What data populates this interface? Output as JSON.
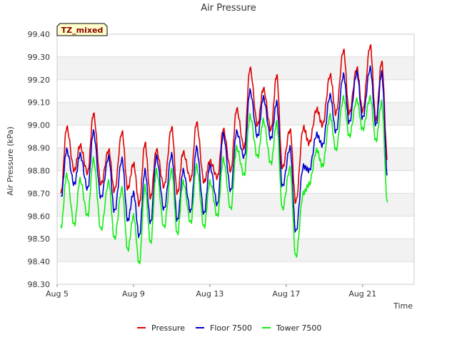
{
  "chart_data": {
    "type": "line",
    "title": "Air Pressure",
    "xlabel": "Time",
    "ylabel": "Air Pressure (kPa)",
    "badge": "TZ_mixed",
    "ylim": [
      98.3,
      99.4
    ],
    "yticks": [
      "98.30",
      "98.40",
      "98.50",
      "98.60",
      "98.70",
      "98.80",
      "98.90",
      "99.00",
      "99.10",
      "99.20",
      "99.30",
      "99.40"
    ],
    "xlim": [
      5.0,
      23.7
    ],
    "xticks": [
      {
        "label": "Aug 5",
        "day": 5
      },
      {
        "label": "Aug 9",
        "day": 9
      },
      {
        "label": "Aug 13",
        "day": 13
      },
      {
        "label": "Aug 17",
        "day": 17
      },
      {
        "label": "Aug 21",
        "day": 21
      }
    ],
    "grid": true,
    "legend_position": "bottom",
    "series": [
      {
        "name": "Pressure",
        "color": "#dd0000",
        "day": [
          5.2,
          5.5,
          5.9,
          6.2,
          6.6,
          6.9,
          7.3,
          7.7,
          8.0,
          8.4,
          8.7,
          9.0,
          9.3,
          9.6,
          9.9,
          10.2,
          10.6,
          11.0,
          11.3,
          11.6,
          12.0,
          12.3,
          12.7,
          13.0,
          13.4,
          13.7,
          14.1,
          14.4,
          14.8,
          15.1,
          15.5,
          15.8,
          16.2,
          16.5,
          16.8,
          17.2,
          17.5,
          17.9,
          18.2,
          18.6,
          18.9,
          19.3,
          19.6,
          20.0,
          20.3,
          20.7,
          21.0,
          21.4,
          21.7,
          22.0,
          22.3
        ],
        "values": [
          98.7,
          98.99,
          98.8,
          98.91,
          98.79,
          99.05,
          98.74,
          98.89,
          98.71,
          98.97,
          98.72,
          98.83,
          98.65,
          98.92,
          98.68,
          98.89,
          98.73,
          98.99,
          98.7,
          98.88,
          98.76,
          99.01,
          98.75,
          98.84,
          98.77,
          98.98,
          98.8,
          99.07,
          98.9,
          99.25,
          99.0,
          99.16,
          98.98,
          99.22,
          98.81,
          98.98,
          98.66,
          98.99,
          98.92,
          99.07,
          99.0,
          99.22,
          99.05,
          99.33,
          99.05,
          99.25,
          99.06,
          99.35,
          99.02,
          99.28,
          98.85
        ]
      },
      {
        "name": "Floor 7500",
        "color": "#0000cc",
        "day": [
          5.2,
          5.5,
          5.9,
          6.2,
          6.6,
          6.9,
          7.3,
          7.7,
          8.0,
          8.4,
          8.7,
          9.0,
          9.3,
          9.6,
          9.9,
          10.2,
          10.6,
          11.0,
          11.3,
          11.6,
          12.0,
          12.3,
          12.7,
          13.0,
          13.4,
          13.7,
          14.1,
          14.4,
          14.8,
          15.1,
          15.5,
          15.8,
          16.2,
          16.5,
          16.8,
          17.2,
          17.5,
          17.9,
          18.2,
          18.6,
          18.9,
          19.3,
          19.6,
          20.0,
          20.3,
          20.7,
          21.0,
          21.4,
          21.7,
          22.0,
          22.3
        ],
        "values": [
          98.68,
          98.89,
          98.74,
          98.87,
          98.72,
          98.97,
          98.68,
          98.86,
          98.62,
          98.85,
          98.58,
          98.7,
          98.51,
          98.8,
          98.57,
          98.86,
          98.63,
          98.87,
          98.58,
          98.8,
          98.62,
          98.9,
          98.61,
          98.82,
          98.65,
          98.96,
          98.71,
          98.97,
          98.86,
          99.15,
          98.95,
          99.12,
          98.94,
          99.1,
          98.73,
          98.9,
          98.53,
          98.82,
          98.8,
          98.96,
          98.91,
          99.13,
          98.97,
          99.22,
          99.01,
          99.23,
          99.03,
          99.25,
          99.0,
          99.23,
          98.78
        ]
      },
      {
        "name": "Tower 7500",
        "color": "#11ee11",
        "day": [
          5.2,
          5.5,
          5.9,
          6.2,
          6.6,
          6.9,
          7.3,
          7.7,
          8.0,
          8.4,
          8.7,
          9.0,
          9.3,
          9.6,
          9.9,
          10.2,
          10.6,
          11.0,
          11.3,
          11.6,
          12.0,
          12.3,
          12.7,
          13.0,
          13.4,
          13.7,
          14.1,
          14.4,
          14.8,
          15.1,
          15.5,
          15.8,
          16.2,
          16.5,
          16.8,
          17.2,
          17.5,
          17.9,
          18.2,
          18.6,
          18.9,
          19.3,
          19.6,
          20.0,
          20.3,
          20.7,
          21.0,
          21.4,
          21.7,
          22.0,
          22.3
        ],
        "values": [
          98.55,
          98.78,
          98.56,
          98.76,
          98.6,
          98.85,
          98.54,
          98.75,
          98.5,
          98.72,
          98.45,
          98.6,
          98.39,
          98.73,
          98.48,
          98.8,
          98.55,
          98.8,
          98.52,
          98.75,
          98.57,
          98.82,
          98.55,
          98.75,
          98.6,
          98.85,
          98.63,
          98.9,
          98.78,
          99.04,
          98.86,
          99.02,
          98.83,
          99.01,
          98.63,
          98.81,
          98.42,
          98.7,
          98.74,
          98.89,
          98.82,
          99.04,
          98.89,
          99.12,
          98.95,
          99.11,
          98.98,
          99.12,
          98.93,
          99.1,
          98.66
        ]
      }
    ]
  }
}
